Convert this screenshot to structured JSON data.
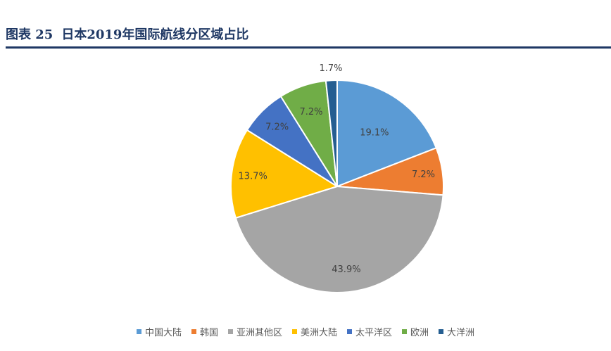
{
  "figure": {
    "number_label": "图表 25",
    "title": "日本2019年国际航线分区域占比"
  },
  "chart_data": {
    "type": "pie",
    "title": "",
    "categories": [
      "中国大陆",
      "韩国",
      "亚洲其他区",
      "美洲大陆",
      "太平洋区",
      "欧洲",
      "大洋洲"
    ],
    "values": [
      19.1,
      7.2,
      43.9,
      13.7,
      7.2,
      7.2,
      1.7
    ],
    "labels": [
      "19.1%",
      "7.2%",
      "43.9%",
      "13.7%",
      "7.2%",
      "7.2%",
      "1.7%"
    ],
    "colors": [
      "#5b9bd5",
      "#ed7d31",
      "#a5a5a5",
      "#ffc000",
      "#4472c4",
      "#70ad47",
      "#255e91"
    ],
    "start_angle": "12 o'clock",
    "direction": "clockwise",
    "legend_position": "bottom"
  }
}
